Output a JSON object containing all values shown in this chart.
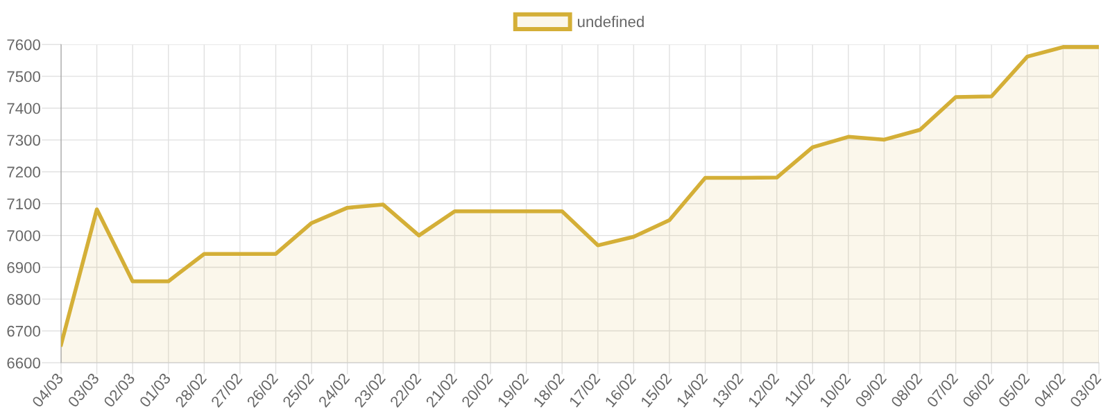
{
  "chart_data": {
    "type": "area",
    "categories": [
      "04/03",
      "03/03",
      "02/03",
      "01/03",
      "28/02",
      "27/02",
      "26/02",
      "25/02",
      "24/02",
      "23/02",
      "22/02",
      "21/02",
      "20/02",
      "19/02",
      "18/02",
      "17/02",
      "16/02",
      "15/02",
      "14/02",
      "13/02",
      "12/02",
      "11/02",
      "10/02",
      "09/02",
      "08/02",
      "07/02",
      "06/02",
      "05/02",
      "04/02",
      "03/02"
    ],
    "series": [
      {
        "name": "undefined",
        "color": "#d4af37",
        "values": [
          6657,
          7082,
          6856,
          6856,
          6942,
          6942,
          6942,
          7039,
          7087,
          7097,
          7000,
          7076,
          7076,
          7076,
          7076,
          6969,
          6996,
          7048,
          7181,
          7181,
          7182,
          7277,
          7310,
          7301,
          7332,
          7435,
          7437,
          7562,
          7592,
          7592
        ]
      }
    ],
    "ylim": [
      6600,
      7600
    ],
    "yticks": [
      6600,
      6700,
      6800,
      6900,
      7000,
      7100,
      7200,
      7300,
      7400,
      7500,
      7600
    ],
    "grid": true,
    "legend": "top"
  }
}
